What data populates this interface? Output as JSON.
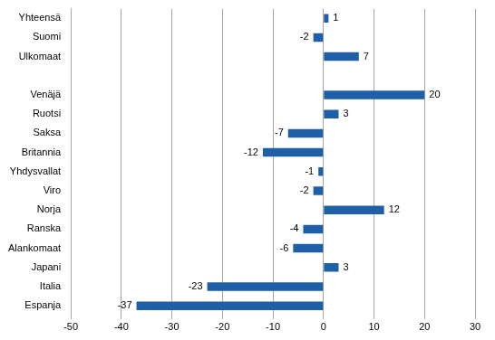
{
  "chart_data": {
    "type": "bar",
    "orientation": "horizontal",
    "categories": [
      "Yhteensä",
      "Suomi",
      "Ulkomaat",
      null,
      "Venäjä",
      "Ruotsi",
      "Saksa",
      "Britannia",
      "Yhdysvallat",
      "Viro",
      "Norja",
      "Ranska",
      "Alankomaat",
      "Japani",
      "Italia",
      "Espanja"
    ],
    "values": [
      1,
      -2,
      7,
      null,
      20,
      3,
      -7,
      -12,
      -1,
      -2,
      12,
      -4,
      -6,
      3,
      -23,
      -37
    ],
    "color": "#1f5fa8",
    "xlim": [
      -50,
      30
    ],
    "xticks": [
      -50,
      -40,
      -30,
      -20,
      -10,
      0,
      10,
      20,
      30
    ],
    "grid": true,
    "data_labels": true
  }
}
